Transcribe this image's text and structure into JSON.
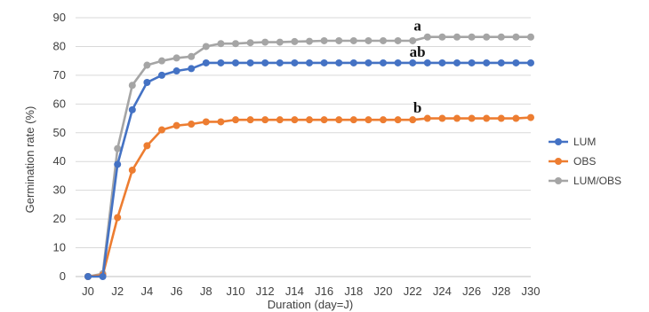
{
  "chart_data": {
    "type": "line",
    "title": "",
    "xlabel": "Duration (day=J)",
    "ylabel": "Germination rate  (%)",
    "ylim": [
      0,
      90
    ],
    "yticks": [
      0,
      10,
      20,
      30,
      40,
      50,
      60,
      70,
      80,
      90
    ],
    "grid": "horizontal",
    "legend_position": "right",
    "x_tick_labels": [
      "J0",
      "J2",
      "J4",
      "J6",
      "J8",
      "J10",
      "J12",
      "J14",
      "J16",
      "J18",
      "J20",
      "J22",
      "J24",
      "J26",
      "J28",
      "J30"
    ],
    "x": [
      "J0",
      "J1",
      "J2",
      "J3",
      "J4",
      "J5",
      "J6",
      "J7",
      "J8",
      "J9",
      "J10",
      "J11",
      "J12",
      "J13",
      "J14",
      "J15",
      "J16",
      "J17",
      "J18",
      "J19",
      "J20",
      "J21",
      "J22",
      "J23",
      "J24",
      "J25",
      "J26",
      "J27",
      "J28",
      "J29",
      "J30"
    ],
    "series": [
      {
        "name": "LUM",
        "color": "#4472c4",
        "values": [
          0,
          0,
          39,
          58,
          67.5,
          70,
          71.5,
          72.3,
          74.3,
          74.3,
          74.3,
          74.3,
          74.3,
          74.3,
          74.3,
          74.3,
          74.3,
          74.3,
          74.3,
          74.3,
          74.3,
          74.3,
          74.3,
          74.3,
          74.3,
          74.3,
          74.3,
          74.3,
          74.3,
          74.3,
          74.3
        ]
      },
      {
        "name": "OBS",
        "color": "#ed7d31",
        "values": [
          0,
          0.5,
          20.5,
          37,
          45.5,
          51,
          52.5,
          53,
          53.8,
          53.8,
          54.5,
          54.5,
          54.5,
          54.5,
          54.5,
          54.5,
          54.5,
          54.5,
          54.5,
          54.5,
          54.5,
          54.5,
          54.5,
          55,
          55,
          55,
          55,
          55,
          55,
          55,
          55.3
        ]
      },
      {
        "name": "LUM/OBS",
        "color": "#a5a5a5",
        "values": [
          0,
          1,
          44.5,
          66.5,
          73.5,
          75,
          76,
          76.5,
          80,
          81,
          81,
          81.3,
          81.5,
          81.5,
          81.7,
          81.8,
          82,
          82,
          82,
          82,
          82,
          82,
          82,
          83.3,
          83.3,
          83.3,
          83.3,
          83.3,
          83.3,
          83.3,
          83.3
        ]
      }
    ],
    "annotations": [
      {
        "text": "a",
        "x": "J21",
        "y": 85.5
      },
      {
        "text": "ab",
        "x": "J21",
        "y": 76.5
      },
      {
        "text": "b",
        "x": "J21",
        "y": 57
      }
    ]
  }
}
